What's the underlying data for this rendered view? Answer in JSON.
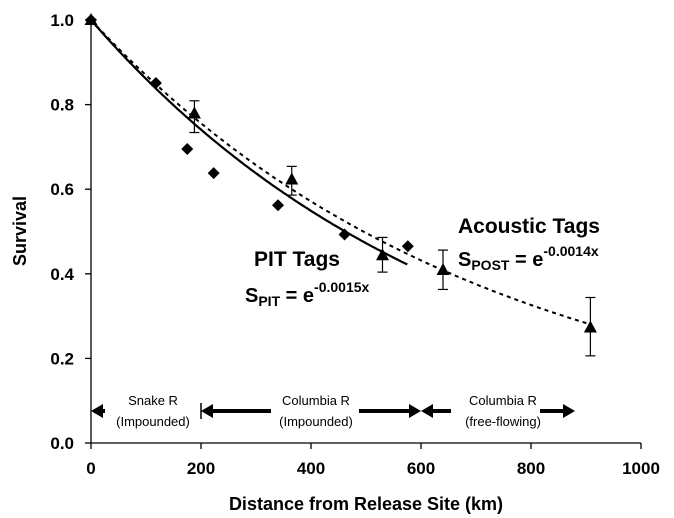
{
  "chart_data": {
    "type": "scatter",
    "xlabel": "Distance from Release Site (km)",
    "ylabel": "Survival",
    "xlim": [
      0,
      1000
    ],
    "ylim": [
      0.0,
      1.0
    ],
    "xticks": [
      "0",
      "200",
      "400",
      "600",
      "800",
      "1000"
    ],
    "yticks": [
      "0.0",
      "0.2",
      "0.4",
      "0.6",
      "0.8",
      "1.0"
    ],
    "grid": false,
    "series": [
      {
        "name": "PIT Tags",
        "marker": "diamond",
        "x": [
          0,
          118,
          175,
          223,
          340,
          461,
          576
        ],
        "y": [
          1.0,
          0.851,
          0.695,
          0.638,
          0.562,
          0.493,
          0.465
        ]
      },
      {
        "name": "Acoustic Tags",
        "marker": "triangle",
        "x": [
          0,
          188,
          365,
          530,
          640,
          908
        ],
        "y": [
          1.0,
          0.779,
          0.623,
          0.444,
          0.409,
          0.273
        ],
        "err_low": [
          null,
          0.734,
          0.586,
          0.404,
          0.363,
          0.206
        ],
        "err_high": [
          null,
          0.809,
          0.654,
          0.486,
          0.456,
          0.344
        ]
      }
    ],
    "fits": [
      {
        "series": "PIT Tags",
        "style": "solid",
        "rate": 0.0015,
        "x_range": [
          0,
          575
        ]
      },
      {
        "series": "Acoustic Tags",
        "style": "dashed",
        "rate": 0.0014,
        "x_range": [
          0,
          910
        ]
      }
    ],
    "annotations": {
      "pit_title": "PIT Tags",
      "pit_eq_base": "S",
      "pit_eq_sub": "PIT",
      "pit_eq_mid": " = e",
      "pit_eq_sup": "-0.0015x",
      "acoustic_title": "Acoustic Tags",
      "acoustic_eq_base": "S",
      "acoustic_eq_sub": "POST",
      "acoustic_eq_mid": " = e",
      "acoustic_eq_sup": "-0.0014x"
    },
    "regions": [
      {
        "line1": "Snake R",
        "line2": "(Impounded)",
        "x_start": 0,
        "x_end": 200
      },
      {
        "line1": "Columbia R",
        "line2": "(Impounded)",
        "x_start": 200,
        "x_end": 600
      },
      {
        "line1": "Columbia R",
        "line2": "(free-flowing)",
        "x_start": 600,
        "x_end": 880
      }
    ],
    "colors": {
      "ink": "#000000",
      "background": "#ffffff"
    }
  }
}
